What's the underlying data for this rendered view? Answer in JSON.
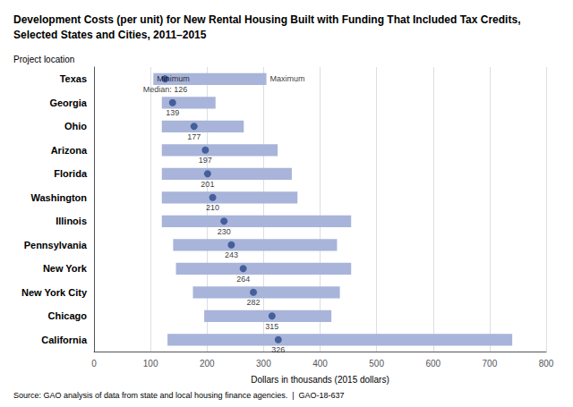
{
  "chart_data": {
    "type": "range_bar",
    "orientation": "horizontal",
    "title": "Development Costs (per unit) for New Rental Housing Built with Funding That Included Tax Credits, Selected States and Cities, 2011–2015",
    "ylabel": "Project location",
    "xlabel": "Dollars in thousands (2015 dollars)",
    "source": "Source: GAO analysis of data from state and local housing finance agencies.  |  GAO-18-637",
    "categories": [
      "Texas",
      "Georgia",
      "Ohio",
      "Arizona",
      "Florida",
      "Washington",
      "Illinois",
      "Pennsylvania",
      "New York",
      "New York City",
      "Chicago",
      "California"
    ],
    "series": [
      {
        "type": "bar",
        "color": "#a8b4d9",
        "min": [
          105,
          120,
          120,
          120,
          120,
          120,
          120,
          140,
          145,
          175,
          195,
          130
        ],
        "max": [
          305,
          215,
          265,
          325,
          350,
          360,
          455,
          430,
          455,
          435,
          420,
          740
        ]
      },
      {
        "type": "scatter",
        "color": "#2b4a8a",
        "marker": "circle",
        "values": [
          126,
          139,
          177,
          197,
          201,
          210,
          230,
          243,
          264,
          282,
          315,
          326
        ],
        "value_labels": [
          "Median: 126",
          "139",
          "177",
          "197",
          "201",
          "210",
          "230",
          "243",
          "264",
          "282",
          "315",
          "326"
        ]
      }
    ],
    "data_labels": true,
    "annotations": [
      {
        "text": "Minimum",
        "category": "Texas",
        "x": 105
      },
      {
        "text": "Maximum",
        "category": "Texas",
        "x": 305
      }
    ],
    "xlim": [
      0,
      800
    ],
    "xticks": [
      0,
      100,
      200,
      300,
      400,
      500,
      600,
      700,
      800
    ],
    "grid": true
  }
}
